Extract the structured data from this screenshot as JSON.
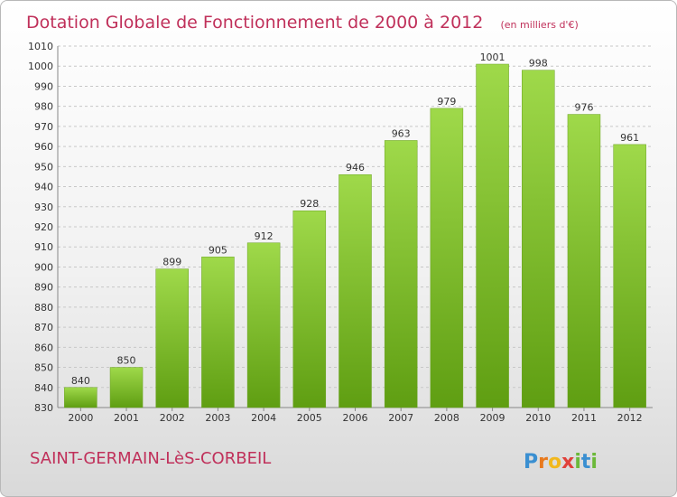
{
  "header": {
    "title": "Dotation Globale de Fonctionnement de 2000 à 2012",
    "subtitle": "(en milliers d'€)"
  },
  "footer": {
    "commune": "SAINT-GERMAIN-LèS-CORBEIL",
    "logo": "Proxiti"
  },
  "colors": {
    "title": "#c0305a",
    "bar_top": "#9fd94a",
    "bar_bottom": "#5f9e12",
    "grid": "#c8c8c8"
  },
  "chart_data": {
    "type": "bar",
    "title": "Dotation Globale de Fonctionnement de 2000 à 2012",
    "subtitle": "(en milliers d'€)",
    "categories": [
      "2000",
      "2001",
      "2002",
      "2003",
      "2004",
      "2005",
      "2006",
      "2007",
      "2008",
      "2009",
      "2010",
      "2011",
      "2012"
    ],
    "values": [
      840,
      850,
      899,
      905,
      912,
      928,
      946,
      963,
      979,
      1001,
      998,
      976,
      961
    ],
    "ylim": [
      830,
      1010
    ],
    "yticks": [
      830,
      840,
      850,
      860,
      870,
      880,
      890,
      900,
      910,
      920,
      930,
      940,
      950,
      960,
      970,
      980,
      990,
      1000,
      1010
    ],
    "grid": true,
    "xlabel": "",
    "ylabel": ""
  }
}
